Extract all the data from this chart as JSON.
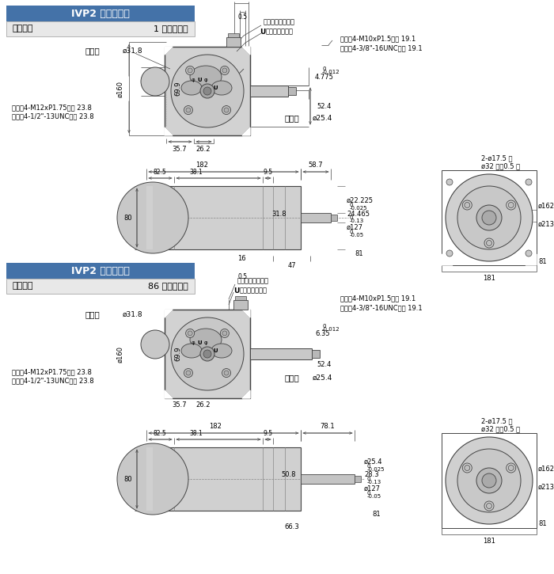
{
  "bg_color": "#ffffff",
  "title_bg": "#4472a8",
  "line_color": "#444444",
  "body_fill": "#d4d4d4",
  "body_fill2": "#c8c8c8",
  "part1_header": "IVP2 法蘭安裝型",
  "part1_sub1": "主軸編號",
  "part1_sub2": "1 號平鍵主軸",
  "part2_header": "IVP2 法蘭安裝型",
  "part2_sub1": "主軸編號",
  "part2_sub2": "86 號平鍵主軸",
  "inlet_label": "進油口",
  "inlet_dia": "ø31.8",
  "outlet_label": "出油口",
  "outlet_dia": "ø25.4",
  "no_mark": "無標記：公制螺紋",
  "u_mark_prefix": "U",
  "u_mark_suffix": "標記：英制螺紋",
  "metric_thread": "公制：4-M10xP1.5，深 19.1",
  "inch_thread": "英制：4-3/8\"-16UNC，深 19.1",
  "metric_bolt": "公制：4-M12xP1.75，深 23.8",
  "inch_bolt": "英制：4-1/2\"-13UNC，深 23.8",
  "side_note1": "2-ø17.5 孔",
  "side_note2": "ø32 孔，0.5 深"
}
